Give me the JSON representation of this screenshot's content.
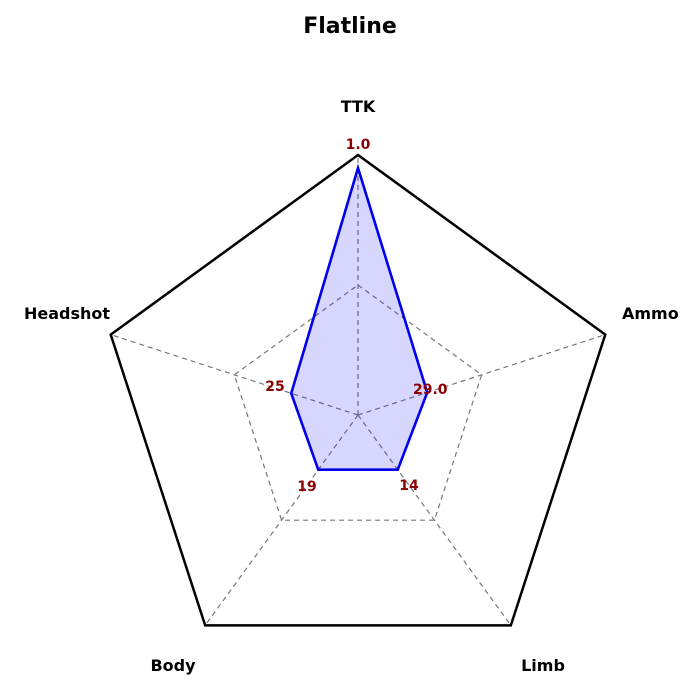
{
  "chart_data": {
    "type": "radar",
    "title": "Flatline",
    "axes": [
      "TTK",
      "Ammo",
      "Limb",
      "Body",
      "Headshot"
    ],
    "values": [
      1.0,
      29.0,
      14,
      19,
      25
    ],
    "value_labels": [
      "1.0",
      "29.0",
      "14",
      "19",
      "25"
    ],
    "normalized": [
      0.95,
      0.28,
      0.26,
      0.26,
      0.27
    ],
    "grid_levels": [
      0.5,
      1.0
    ],
    "grid": true,
    "colors": {
      "series_line": "#0000ee",
      "series_fill": "#d8d8ff",
      "value_text": "#8b0000",
      "frame": "#000000",
      "grid": "#777777"
    }
  }
}
